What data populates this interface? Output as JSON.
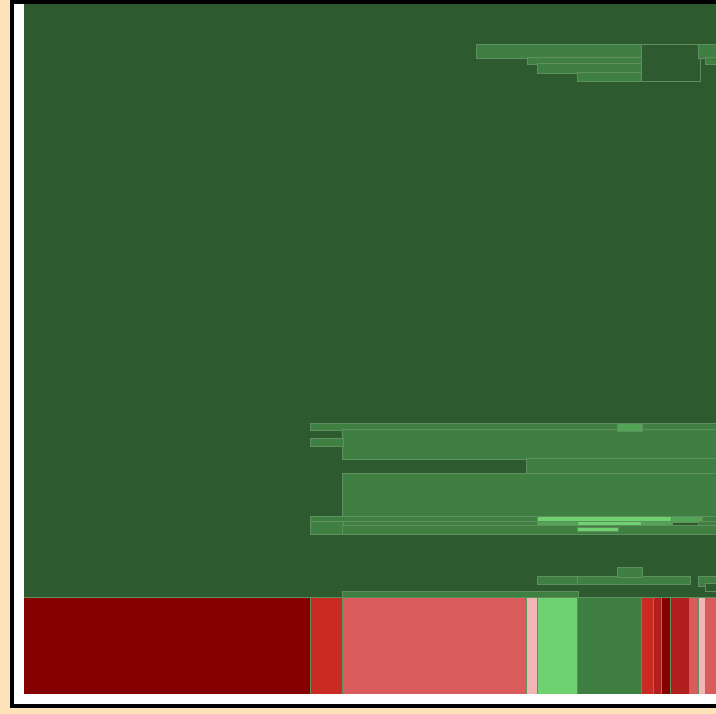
{
  "palette": {
    "green_dark": "#2d5a2e",
    "green_mid": "#407f42",
    "green_light": "#52a556",
    "green_bright": "#6fd270",
    "red_dark": "#850000",
    "red": "#c92a22",
    "red_mid": "#b11f1f",
    "red_light": "#d95b5b",
    "pink": "#f2b5b5",
    "outline": "#5f8f5f",
    "frame": "#000000",
    "background": "#ffe3b8",
    "inner_border": "#ffffff"
  },
  "tile_count": 45,
  "caption": ""
}
